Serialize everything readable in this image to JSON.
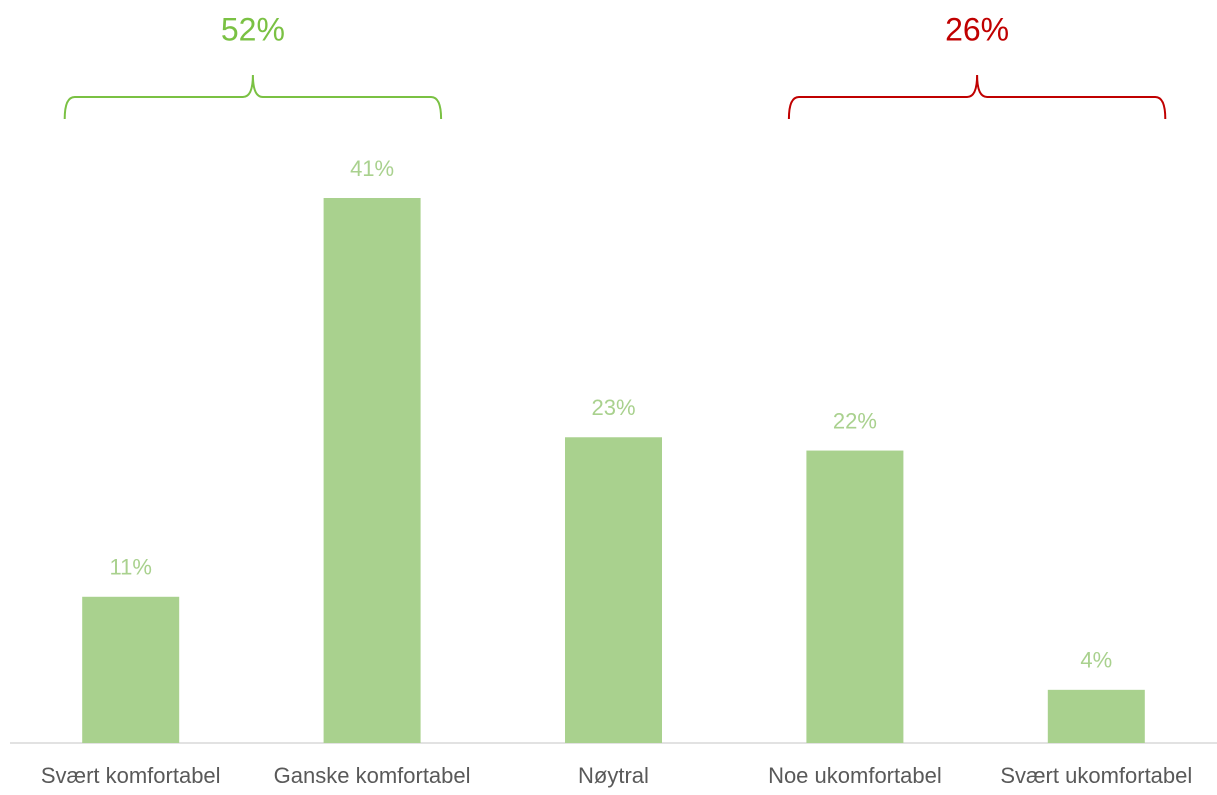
{
  "chart_data": {
    "type": "bar",
    "categories": [
      "Svært komfortabel",
      "Ganske komfortabel",
      "Nøytral",
      "Noe ukomfortabel",
      "Svært ukomfortabel"
    ],
    "values": [
      11,
      41,
      23,
      22,
      4
    ],
    "value_labels": [
      "11%",
      "41%",
      "23%",
      "22%",
      "4%"
    ],
    "color": "#a9d18e",
    "annotations": [
      {
        "label": "52%",
        "value": 52,
        "color": "#7ac143",
        "span": [
          "Svært komfortabel",
          "Ganske komfortabel"
        ]
      },
      {
        "label": "26%",
        "value": 26,
        "color": "#c00000",
        "span": [
          "Noe ukomfortabel",
          "Svært ukomfortabel"
        ]
      }
    ]
  }
}
